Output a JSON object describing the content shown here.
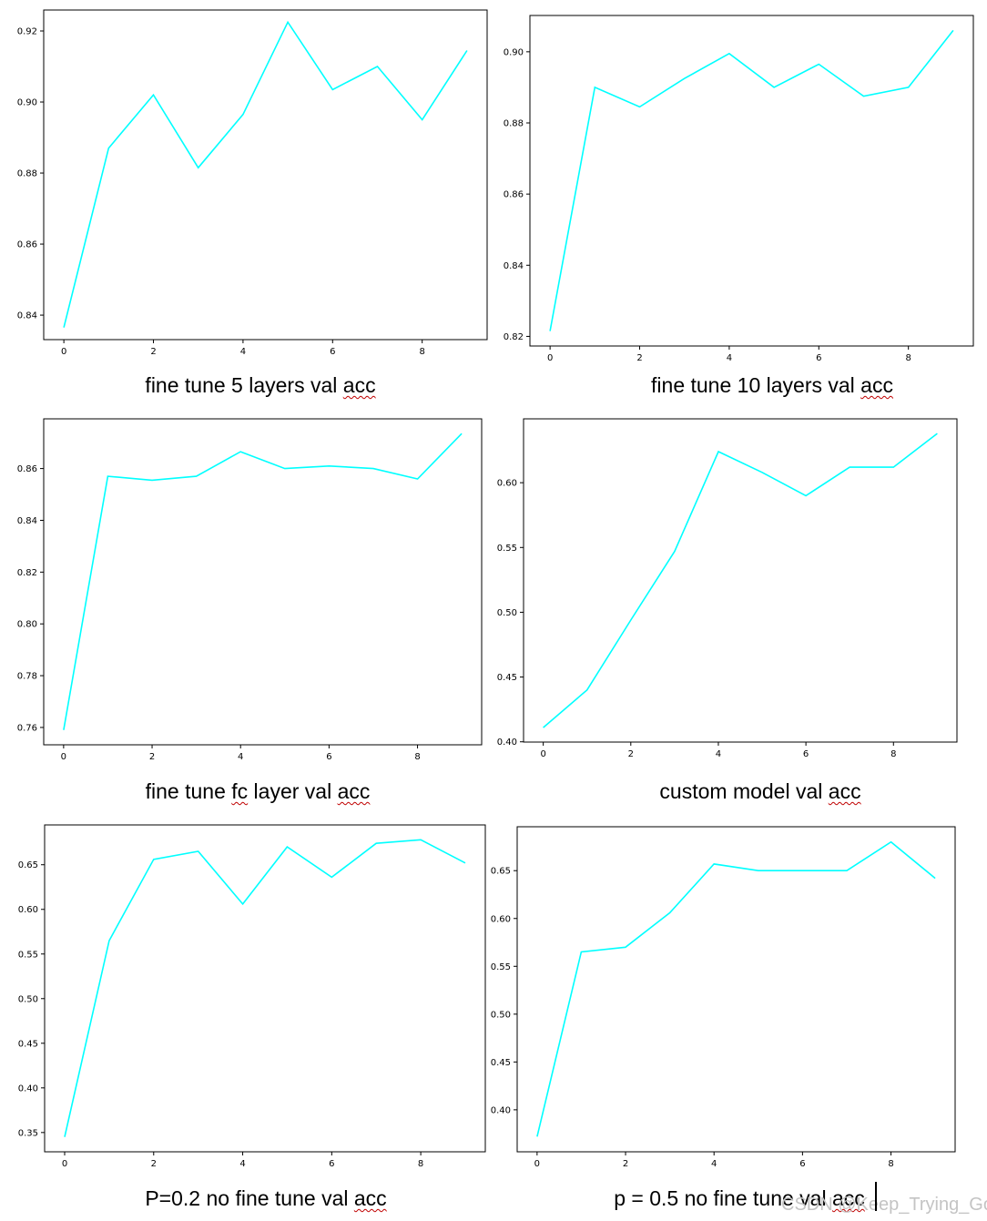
{
  "watermark": "CSDN @Keep_Trying_Go",
  "chart_data": [
    {
      "type": "line",
      "title": "fine tune 5 layers val acc",
      "title_parts": [
        {
          "text": "fine tune 5 layers val "
        },
        {
          "text": "acc",
          "squiggle": true
        }
      ],
      "x": [
        0,
        1,
        2,
        3,
        4,
        5,
        6,
        7,
        8,
        9
      ],
      "series": [
        {
          "values": [
            0.8365,
            0.887,
            0.902,
            0.8815,
            0.8965,
            0.9225,
            0.9035,
            0.91,
            0.895,
            0.9145
          ],
          "color": "#00ffff"
        }
      ],
      "xticks": [
        0,
        2,
        4,
        6,
        8
      ],
      "yticks": [
        0.84,
        0.86,
        0.88,
        0.9,
        0.92
      ],
      "xlim": [
        -0.45,
        9.45
      ],
      "ylim": [
        0.8331,
        0.9259
      ]
    },
    {
      "type": "line",
      "title": "fine tune 10 layers val acc",
      "title_parts": [
        {
          "text": "fine tune 10 layers val "
        },
        {
          "text": "acc",
          "squiggle": true
        }
      ],
      "x": [
        0,
        1,
        2,
        3,
        4,
        5,
        6,
        7,
        8,
        9
      ],
      "series": [
        {
          "values": [
            0.8215,
            0.89,
            0.8845,
            0.8925,
            0.8995,
            0.89,
            0.8965,
            0.8875,
            0.89,
            0.906
          ],
          "color": "#00ffff"
        }
      ],
      "xticks": [
        0,
        2,
        4,
        6,
        8
      ],
      "yticks": [
        0.82,
        0.84,
        0.86,
        0.88,
        0.9
      ],
      "xlim": [
        -0.45,
        9.45
      ],
      "ylim": [
        0.8173,
        0.9102
      ]
    },
    {
      "type": "line",
      "title": "fine tune fc layer val acc",
      "title_parts": [
        {
          "text": "fine tune "
        },
        {
          "text": "fc",
          "squiggle": true
        },
        {
          "text": " layer val "
        },
        {
          "text": "acc",
          "squiggle": true
        }
      ],
      "x": [
        0,
        1,
        2,
        3,
        4,
        5,
        6,
        7,
        8,
        9
      ],
      "series": [
        {
          "values": [
            0.759,
            0.857,
            0.8555,
            0.857,
            0.8665,
            0.86,
            0.861,
            0.86,
            0.856,
            0.8735
          ],
          "color": "#00ffff"
        }
      ],
      "xticks": [
        0,
        2,
        4,
        6,
        8
      ],
      "yticks": [
        0.76,
        0.78,
        0.8,
        0.82,
        0.84,
        0.86
      ],
      "xlim": [
        -0.45,
        9.45
      ],
      "ylim": [
        0.7533,
        0.8792
      ]
    },
    {
      "type": "line",
      "title": "custom model val acc",
      "title_parts": [
        {
          "text": "custom model val "
        },
        {
          "text": "acc",
          "squiggle": true
        }
      ],
      "x": [
        0,
        1,
        2,
        3,
        4,
        5,
        6,
        7,
        8,
        9
      ],
      "series": [
        {
          "values": [
            0.411,
            0.44,
            0.494,
            0.547,
            0.624,
            0.608,
            0.59,
            0.612,
            0.612,
            0.638
          ],
          "color": "#00ffff"
        }
      ],
      "xticks": [
        0,
        2,
        4,
        6,
        8
      ],
      "yticks": [
        0.4,
        0.45,
        0.5,
        0.55,
        0.6
      ],
      "xlim": [
        -0.45,
        9.45
      ],
      "ylim": [
        0.3998,
        0.6493
      ]
    },
    {
      "type": "line",
      "title": "P=0.2 no fine tune val acc",
      "title_parts": [
        {
          "text": "P=0.2 no fine tune val "
        },
        {
          "text": "acc",
          "squiggle": true
        }
      ],
      "x": [
        0,
        1,
        2,
        3,
        4,
        5,
        6,
        7,
        8,
        9
      ],
      "series": [
        {
          "values": [
            0.345,
            0.565,
            0.656,
            0.665,
            0.606,
            0.67,
            0.636,
            0.674,
            0.678,
            0.652
          ],
          "color": "#00ffff"
        }
      ],
      "xticks": [
        0,
        2,
        4,
        6,
        8
      ],
      "yticks": [
        0.35,
        0.4,
        0.45,
        0.5,
        0.55,
        0.6,
        0.65
      ],
      "xlim": [
        -0.45,
        9.45
      ],
      "ylim": [
        0.3284,
        0.6946
      ]
    },
    {
      "type": "line",
      "title": "p = 0.5 no fine tune val acc",
      "title_parts": [
        {
          "text": "p = 0.5 no fine tune val "
        },
        {
          "text": "acc",
          "squiggle": true
        }
      ],
      "x": [
        0,
        1,
        2,
        3,
        4,
        5,
        6,
        7,
        8,
        9
      ],
      "series": [
        {
          "values": [
            0.372,
            0.565,
            0.57,
            0.606,
            0.657,
            0.65,
            0.65,
            0.65,
            0.68,
            0.642
          ],
          "color": "#00ffff"
        }
      ],
      "xticks": [
        0,
        2,
        4,
        6,
        8
      ],
      "yticks": [
        0.4,
        0.45,
        0.5,
        0.55,
        0.6,
        0.65
      ],
      "xlim": [
        -0.45,
        9.45
      ],
      "ylim": [
        0.3561,
        0.6959
      ]
    }
  ]
}
